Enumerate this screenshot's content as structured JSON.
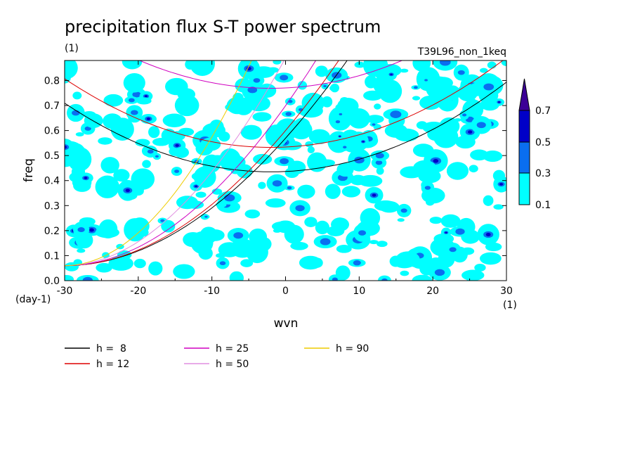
{
  "chart_data": {
    "type": "heatmap",
    "title": "precipitation flux S-T power spectrum",
    "title_unit": "(1)",
    "run_label": "T39L96_non_1keq",
    "xlabel": "wvn",
    "x_unit": "(1)",
    "ylabel": "freq",
    "y_unit": "(day-1)",
    "xlim": [
      -30,
      30
    ],
    "ylim": [
      0,
      0.88
    ],
    "x_ticks": [
      "-30",
      "-20",
      "-10",
      "0",
      "10",
      "20",
      "30"
    ],
    "y_ticks": [
      "0.0",
      "0.1",
      "0.2",
      "0.3",
      "0.4",
      "0.5",
      "0.6",
      "0.7",
      "0.8"
    ],
    "colorbar": {
      "levels": [
        "0.1",
        "0.3",
        "0.5",
        "0.7"
      ],
      "colors": [
        "#00ffff",
        "#0a6ef0",
        "#0000c8",
        "#3c0096"
      ]
    },
    "dispersion_curves": [
      {
        "name": "h =  8",
        "h": 8,
        "color": "#000000"
      },
      {
        "name": "h = 12",
        "h": 12,
        "color": "#dd0000"
      },
      {
        "name": "h = 25",
        "h": 25,
        "color": "#d000c0"
      },
      {
        "name": "h = 50",
        "h": 50,
        "color": "#e08ee0"
      },
      {
        "name": "h = 90",
        "h": 90,
        "color": "#eecc00"
      }
    ],
    "legend_position": "bottom-left"
  }
}
